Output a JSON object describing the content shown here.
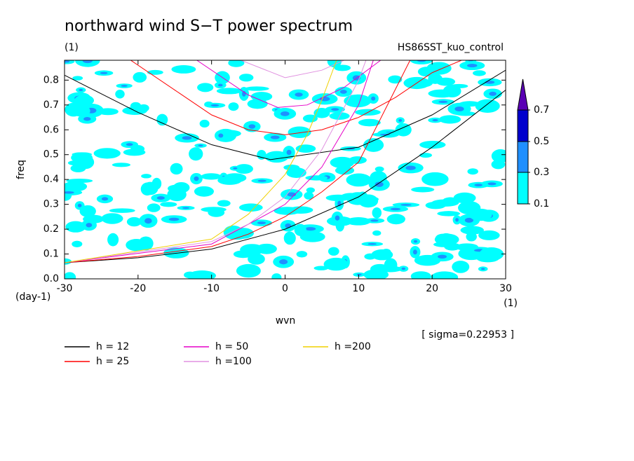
{
  "chart_data": {
    "type": "line",
    "title": "northward wind S−T power spectrum",
    "subtitle": "(1)",
    "run_name": "HS86SST_kuo_control",
    "x_label": "wvn",
    "x_unit": "(1)",
    "y_label": "freq",
    "y_unit": "(day-1)",
    "note": "[ sigma=0.22953 ]",
    "xlim": [
      -30,
      30
    ],
    "ylim": [
      0,
      0.88
    ],
    "xticks": [
      -30,
      -20,
      -10,
      0,
      10,
      20,
      30
    ],
    "yticks": [
      {
        "value": 0,
        "label": "0.0"
      },
      0.1,
      0.2,
      0.3,
      0.4,
      0.5,
      0.6,
      0.7,
      0.8
    ],
    "colorbar": {
      "levels": [
        0.1,
        0.3,
        0.5,
        0.7
      ],
      "colors": [
        "#00ffff",
        "#1f8fff",
        "#0000cd",
        "#5a00b4"
      ]
    },
    "series": [
      {
        "name": "h = 12",
        "color": "#000000",
        "branches": [
          {
            "x": [
              -30,
              -20,
              -10,
              0,
              10,
              20,
              30
            ],
            "y": [
              0.065,
              0.085,
              0.12,
              0.2,
              0.33,
              0.53,
              0.76
            ]
          },
          {
            "x": [
              -30,
              -20,
              -10,
              -2,
              10,
              20,
              30
            ],
            "y": [
              0.82,
              0.67,
              0.54,
              0.48,
              0.53,
              0.66,
              0.84
            ]
          }
        ]
      },
      {
        "name": "h = 25",
        "color": "#ff0000",
        "branches": [
          {
            "x": [
              -30,
              -20,
              -10,
              -5,
              0,
              5,
              10,
              17
            ],
            "y": [
              0.065,
              0.09,
              0.13,
              0.18,
              0.25,
              0.35,
              0.47,
              0.88
            ]
          },
          {
            "x": [
              -21,
              -15,
              -10,
              -5,
              0,
              5,
              10,
              15,
              20,
              24
            ],
            "y": [
              0.88,
              0.76,
              0.66,
              0.6,
              0.58,
              0.6,
              0.65,
              0.73,
              0.83,
              0.88
            ]
          }
        ]
      },
      {
        "name": "h = 50",
        "color": "#e600c8",
        "branches": [
          {
            "x": [
              -30,
              -10,
              0,
              5,
              10,
              12
            ],
            "y": [
              0.065,
              0.14,
              0.3,
              0.45,
              0.7,
              0.88
            ]
          },
          {
            "x": [
              -12,
              -5,
              -1,
              3,
              8,
              13
            ],
            "y": [
              0.88,
              0.74,
              0.69,
              0.7,
              0.77,
              0.88
            ]
          }
        ]
      },
      {
        "name": "h =100",
        "color": "#e090e0",
        "branches": [
          {
            "x": [
              -30,
              -10,
              -5,
              0,
              5,
              10,
              11
            ],
            "y": [
              0.065,
              0.15,
              0.22,
              0.33,
              0.52,
              0.8,
              0.88
            ]
          },
          {
            "x": [
              -6,
              0,
              5,
              8
            ],
            "y": [
              0.88,
              0.81,
              0.84,
              0.88
            ]
          }
        ]
      },
      {
        "name": "h =200",
        "color": "#f0d000",
        "branches": [
          {
            "x": [
              -30,
              -10,
              -5,
              0,
              3,
              5,
              7
            ],
            "y": [
              0.065,
              0.16,
              0.26,
              0.42,
              0.58,
              0.72,
              0.88
            ]
          }
        ]
      }
    ]
  }
}
